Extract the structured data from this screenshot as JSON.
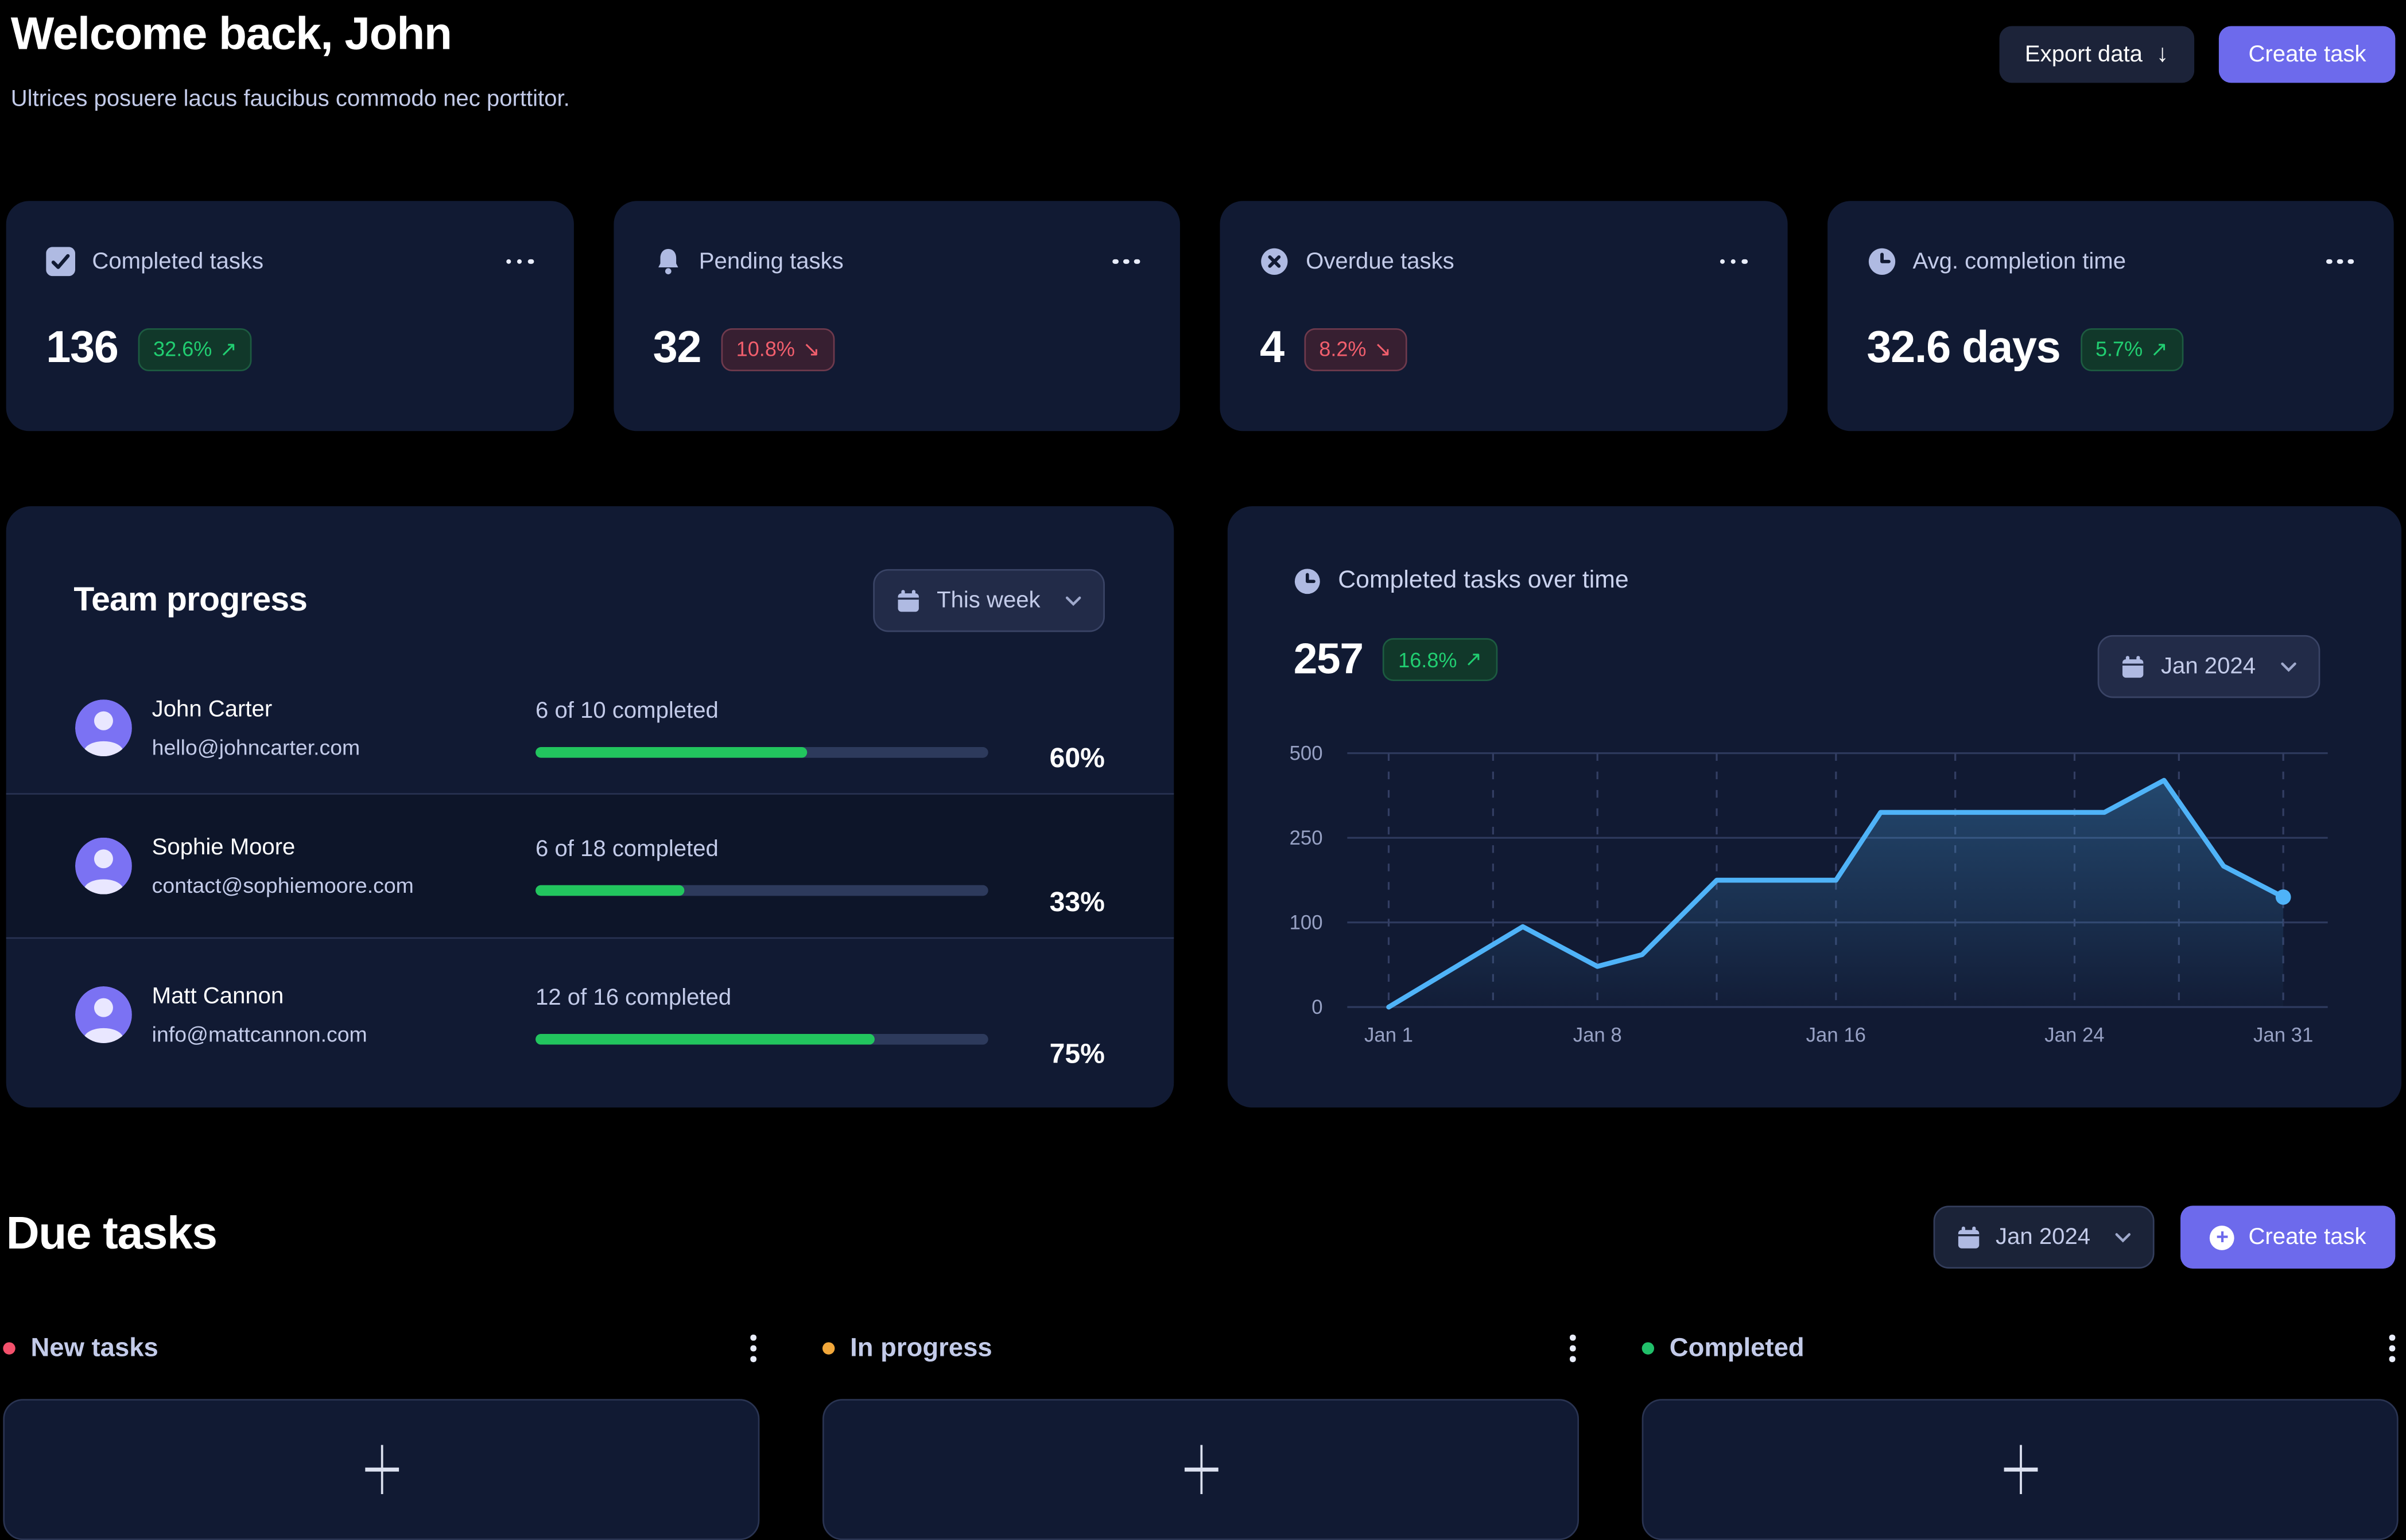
{
  "header": {
    "title": "Welcome back, John",
    "subtitle": "Ultrices posuere lacus faucibus commodo nec porttitor.",
    "export_label": "Export data",
    "create_label": "Create task"
  },
  "icons": {
    "download_arrow": "↓",
    "plus": "+"
  },
  "stats": [
    {
      "icon": "checkbox-icon",
      "label": "Completed tasks",
      "value": "136",
      "delta": "32.6%",
      "arrow": "↗",
      "trend": "positive"
    },
    {
      "icon": "bell-icon",
      "label": "Pending tasks",
      "value": "32",
      "delta": "10.8%",
      "arrow": "↘",
      "trend": "negative"
    },
    {
      "icon": "x-circle-icon",
      "label": "Overdue tasks",
      "value": "4",
      "delta": "8.2%",
      "arrow": "↘",
      "trend": "negative"
    },
    {
      "icon": "clock-icon",
      "label": "Avg. completion time",
      "value": "32.6 days",
      "delta": "5.7%",
      "arrow": "↗",
      "trend": "positive"
    }
  ],
  "team_progress": {
    "title": "Team progress",
    "filter_label": "This week",
    "rows": [
      {
        "name": "John Carter",
        "email": "hello@johncarter.com",
        "completed_label": "6 of 10 completed",
        "percent": 60,
        "percent_label": "60%"
      },
      {
        "name": "Sophie Moore",
        "email": "contact@sophiemoore.com",
        "completed_label": "6 of 18 completed",
        "percent": 33,
        "percent_label": "33%"
      },
      {
        "name": "Matt Cannon",
        "email": "info@mattcannon.com",
        "completed_label": "12 of 16 completed",
        "percent": 75,
        "percent_label": "75%"
      }
    ]
  },
  "chart_card": {
    "title": "Completed tasks over time",
    "value": "257",
    "delta": "16.8%",
    "arrow": "↗",
    "filter_label": "Jan 2024"
  },
  "chart_data": {
    "type": "area",
    "title": "Completed tasks over time",
    "x": [
      1,
      5.5,
      8,
      9.5,
      12,
      16,
      17.5,
      25,
      27,
      29,
      31
    ],
    "values": [
      0,
      95,
      48,
      62,
      175,
      175,
      325,
      325,
      420,
      200,
      145
    ],
    "x_range": [
      1,
      31
    ],
    "x_tick_days": [
      1,
      8,
      16,
      24,
      31
    ],
    "x_tick_labels": [
      "Jan 1",
      "Jan 8",
      "Jan 16",
      "Jan 24",
      "Jan 31"
    ],
    "y_ticks": [
      0,
      100,
      250,
      500
    ],
    "y_tick_labels": [
      "0",
      "100",
      "250",
      "500"
    ],
    "y_scale": "piecewise-equal-tick-spacing",
    "grid": {
      "horizontal": "solid",
      "vertical": "dashed",
      "vertical_minor_at_midpoints": true
    },
    "line_color": "#4FB3F8",
    "area_fill": "blue-gradient-fade",
    "end_dot": true,
    "legend": "none"
  },
  "due_tasks": {
    "title": "Due tasks",
    "filter_label": "Jan 2024",
    "create_label": "Create task",
    "columns": [
      {
        "label": "New tasks",
        "dot_color": "#F4516C"
      },
      {
        "label": "In progress",
        "dot_color": "#F2A83B"
      },
      {
        "label": "Completed",
        "dot_color": "#21C06A"
      }
    ]
  }
}
